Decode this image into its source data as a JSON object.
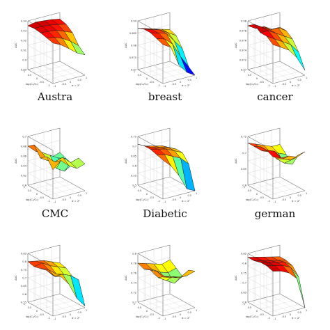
{
  "figure": {
    "captions": [
      "Austra",
      "breast",
      "cancer",
      "CMC",
      "Diabetic",
      "german"
    ],
    "axis_text": {
      "x_label": "log(C₁/C₂)",
      "y_label": "σ = 2ᵏ",
      "z_label": "AUC"
    }
  },
  "chart_data": [
    {
      "type": "surface",
      "panel": "Austra",
      "title": "Austra",
      "xlabel": "log(C₁/C₂)",
      "ylabel": "σ = 2ᵏ",
      "zlabel": "AUC",
      "x": [
        -1,
        -0.5,
        0,
        0.5,
        1
      ],
      "y": [
        -1,
        -0.5,
        0,
        0.5,
        1
      ],
      "zlim": [
        0.88,
        0.94
      ],
      "z_ticks": [
        "0.94",
        "0.93",
        "0.92",
        "0.91",
        "0.9",
        "0.89"
      ],
      "z": [
        [
          0.93,
          0.932,
          0.934,
          0.935,
          0.934
        ],
        [
          0.925,
          0.93,
          0.933,
          0.935,
          0.936
        ],
        [
          0.918,
          0.926,
          0.932,
          0.934,
          0.935
        ],
        [
          0.91,
          0.92,
          0.928,
          0.932,
          0.934
        ],
        [
          0.905,
          0.912,
          0.924,
          0.93,
          0.932
        ]
      ]
    },
    {
      "type": "surface",
      "panel": "breast",
      "title": "breast",
      "xlabel": "log(C₁/C₂)",
      "ylabel": "σ = 2ᵏ",
      "zlabel": "AUC",
      "x": [
        -1,
        -0.5,
        0,
        0.5,
        1
      ],
      "y": [
        -1,
        -0.5,
        0,
        0.5,
        1
      ],
      "zlim": [
        0.97,
        0.99
      ],
      "z_ticks": [
        "0.99",
        "0.985",
        "0.98",
        "0.975",
        "0.97"
      ],
      "z": [
        [
          0.986,
          0.987,
          0.988,
          0.988,
          0.987
        ],
        [
          0.984,
          0.986,
          0.987,
          0.987,
          0.986
        ],
        [
          0.976,
          0.983,
          0.986,
          0.986,
          0.985
        ],
        [
          0.972,
          0.977,
          0.982,
          0.984,
          0.984
        ],
        [
          0.97,
          0.972,
          0.978,
          0.982,
          0.983
        ]
      ]
    },
    {
      "type": "surface",
      "panel": "cancer",
      "title": "cancer",
      "xlabel": "log(C₁/C₂)",
      "ylabel": "σ = 2ᵏ",
      "zlabel": "AUC",
      "x": [
        -1,
        -0.5,
        0,
        0.5,
        1
      ],
      "y": [
        -1,
        -0.5,
        0,
        0.5,
        1
      ],
      "zlim": [
        0.97,
        0.98
      ],
      "z_ticks": [
        "0.98",
        "0.978",
        "0.976",
        "0.974",
        "0.972",
        "0.97"
      ],
      "z": [
        [
          0.978,
          0.979,
          0.979,
          0.98,
          0.979
        ],
        [
          0.977,
          0.978,
          0.979,
          0.979,
          0.978
        ],
        [
          0.976,
          0.977,
          0.978,
          0.978,
          0.978
        ],
        [
          0.974,
          0.976,
          0.977,
          0.978,
          0.977
        ],
        [
          0.971,
          0.974,
          0.976,
          0.977,
          0.977
        ]
      ]
    },
    {
      "type": "surface",
      "panel": "CMC",
      "title": "CMC",
      "xlabel": "log(C₁/C₂)",
      "ylabel": "σ = 2ᵏ",
      "zlabel": "AUC",
      "x": [
        -1,
        -0.5,
        0,
        0.5,
        1
      ],
      "y": [
        -1,
        -0.5,
        0,
        0.5,
        1
      ],
      "zlim": [
        0.6,
        0.7
      ],
      "z_ticks": [
        "0.7",
        "0.68",
        "0.66",
        "0.64",
        "0.62",
        "0.6"
      ],
      "z": [
        [
          0.66,
          0.68,
          0.67,
          0.69,
          0.68
        ],
        [
          0.675,
          0.665,
          0.66,
          0.67,
          0.665
        ],
        [
          0.66,
          0.67,
          0.64,
          0.66,
          0.655
        ],
        [
          0.65,
          0.655,
          0.63,
          0.65,
          0.645
        ],
        [
          0.655,
          0.66,
          0.64,
          0.645,
          0.65
        ]
      ]
    },
    {
      "type": "surface",
      "panel": "Diabetic",
      "title": "Diabetic",
      "xlabel": "log(C₁/C₂)",
      "ylabel": "σ = 2ᵏ",
      "zlabel": "AUC",
      "x": [
        -1,
        -0.5,
        0,
        0.5,
        1
      ],
      "y": [
        -1,
        -0.5,
        0,
        0.5,
        1
      ],
      "zlim": [
        0.5,
        0.75
      ],
      "z_ticks": [
        "0.75",
        "0.7",
        "0.65",
        "0.6",
        "0.55",
        "0.5"
      ],
      "z": [
        [
          0.7,
          0.71,
          0.72,
          0.72,
          0.71
        ],
        [
          0.66,
          0.7,
          0.71,
          0.7,
          0.69
        ],
        [
          0.6,
          0.68,
          0.7,
          0.69,
          0.68
        ],
        [
          0.52,
          0.66,
          0.68,
          0.68,
          0.67
        ],
        [
          0.5,
          0.62,
          0.66,
          0.66,
          0.65
        ]
      ]
    },
    {
      "type": "surface",
      "panel": "german",
      "title": "german",
      "xlabel": "log(C₁/C₂)",
      "ylabel": "σ = 2ᵏ",
      "zlabel": "AUC",
      "x": [
        -1,
        -0.5,
        0,
        0.5,
        1
      ],
      "y": [
        -1,
        -0.5,
        0,
        0.5,
        1
      ],
      "zlim": [
        0.6,
        0.75
      ],
      "z_ticks": [
        "0.75",
        "0.7",
        "0.65",
        "0.6"
      ],
      "z": [
        [
          0.73,
          0.74,
          0.74,
          0.73,
          0.73
        ],
        [
          0.72,
          0.73,
          0.72,
          0.71,
          0.72
        ],
        [
          0.72,
          0.7,
          0.69,
          0.7,
          0.71
        ],
        [
          0.71,
          0.69,
          0.67,
          0.69,
          0.7
        ],
        [
          0.72,
          0.7,
          0.66,
          0.68,
          0.7
        ]
      ]
    },
    {
      "type": "surface",
      "panel": "row3-left",
      "xlabel": "log(C₁/C₂)",
      "ylabel": "σ = 2ᵏ",
      "zlabel": "AUC",
      "x": [
        -1,
        -0.5,
        0,
        0.5,
        1
      ],
      "y": [
        -1,
        -0.5,
        0,
        0.5,
        1
      ],
      "zlim": [
        0.55,
        0.85
      ],
      "z_ticks": [
        "0.85",
        "0.8",
        "0.75",
        "0.7",
        "0.65",
        "0.6",
        "0.55"
      ],
      "z": [
        [
          0.8,
          0.81,
          0.8,
          0.79,
          0.8
        ],
        [
          0.78,
          0.76,
          0.78,
          0.8,
          0.79
        ],
        [
          0.72,
          0.76,
          0.74,
          0.77,
          0.78
        ],
        [
          0.62,
          0.74,
          0.72,
          0.75,
          0.76
        ],
        [
          0.56,
          0.7,
          0.7,
          0.73,
          0.74
        ]
      ]
    },
    {
      "type": "surface",
      "panel": "row3-middle",
      "xlabel": "log(C₁/C₂)",
      "ylabel": "σ = 2ᵏ",
      "zlabel": "AUC",
      "x": [
        -1,
        -0.5,
        0,
        0.5,
        1
      ],
      "y": [
        -1,
        -0.5,
        0,
        0.5,
        1
      ],
      "zlim": [
        0.7,
        0.8
      ],
      "z_ticks": [
        "0.8",
        "0.78",
        "0.76",
        "0.74",
        "0.72",
        "0.7"
      ],
      "z": [
        [
          0.78,
          0.785,
          0.78,
          0.775,
          0.78
        ],
        [
          0.775,
          0.77,
          0.76,
          0.77,
          0.775
        ],
        [
          0.77,
          0.765,
          0.75,
          0.76,
          0.77
        ],
        [
          0.77,
          0.76,
          0.74,
          0.755,
          0.765
        ],
        [
          0.775,
          0.77,
          0.75,
          0.76,
          0.77
        ]
      ]
    },
    {
      "type": "surface",
      "panel": "row3-right",
      "xlabel": "log(C₁/C₂)",
      "ylabel": "σ = 2ᵏ",
      "zlabel": "AUC",
      "x": [
        -1,
        -0.5,
        0,
        0.5,
        1
      ],
      "y": [
        -1,
        -0.5,
        0,
        0.5,
        1
      ],
      "zlim": [
        0.6,
        0.85
      ],
      "z_ticks": [
        "0.85",
        "0.8",
        "0.75",
        "0.7",
        "0.65",
        "0.6"
      ],
      "z": [
        [
          0.83,
          0.84,
          0.84,
          0.83,
          0.83
        ],
        [
          0.82,
          0.83,
          0.83,
          0.82,
          0.82
        ],
        [
          0.8,
          0.82,
          0.82,
          0.81,
          0.81
        ],
        [
          0.76,
          0.8,
          0.81,
          0.8,
          0.8
        ],
        [
          0.6,
          0.74,
          0.78,
          0.79,
          0.79
        ]
      ]
    }
  ]
}
